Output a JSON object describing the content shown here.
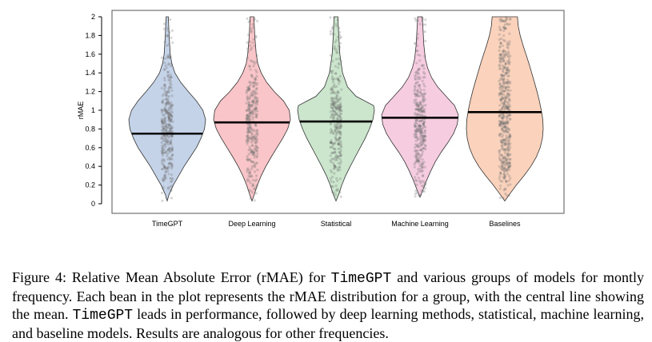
{
  "chart_data": {
    "type": "violin",
    "ylabel": "rMAE",
    "ylim": [
      0,
      2
    ],
    "yticks": [
      0,
      0.2,
      0.4,
      0.6,
      0.8,
      1,
      1.2,
      1.4,
      1.6,
      1.8,
      2
    ],
    "ytick_labels": [
      "0",
      "0.2",
      "0.4",
      "0.6",
      "0.8",
      "1",
      "1.2",
      "1.4",
      "1.6",
      "1.8",
      "2"
    ],
    "groups": [
      {
        "name": "TimeGPT",
        "mean": 0.75,
        "min": 0.03,
        "max": 2.0,
        "color": "#c5d3e8",
        "profile": [
          [
            0.03,
            0
          ],
          [
            0.1,
            0.05
          ],
          [
            0.2,
            0.16
          ],
          [
            0.3,
            0.3
          ],
          [
            0.4,
            0.44
          ],
          [
            0.5,
            0.6
          ],
          [
            0.6,
            0.76
          ],
          [
            0.7,
            0.88
          ],
          [
            0.8,
            0.97
          ],
          [
            0.9,
            1.0
          ],
          [
            1.0,
            0.93
          ],
          [
            1.1,
            0.76
          ],
          [
            1.2,
            0.55
          ],
          [
            1.3,
            0.35
          ],
          [
            1.4,
            0.2
          ],
          [
            1.5,
            0.12
          ],
          [
            1.6,
            0.08
          ],
          [
            1.8,
            0.05
          ],
          [
            2.0,
            0.03
          ]
        ]
      },
      {
        "name": "Deep Learning",
        "mean": 0.87,
        "min": 0.03,
        "max": 2.0,
        "color": "#f9c5c8",
        "profile": [
          [
            0.03,
            0
          ],
          [
            0.1,
            0.06
          ],
          [
            0.2,
            0.14
          ],
          [
            0.3,
            0.24
          ],
          [
            0.4,
            0.36
          ],
          [
            0.5,
            0.5
          ],
          [
            0.6,
            0.65
          ],
          [
            0.7,
            0.8
          ],
          [
            0.8,
            0.93
          ],
          [
            0.9,
            1.0
          ],
          [
            1.0,
            0.97
          ],
          [
            1.1,
            0.82
          ],
          [
            1.2,
            0.58
          ],
          [
            1.3,
            0.38
          ],
          [
            1.4,
            0.24
          ],
          [
            1.5,
            0.15
          ],
          [
            1.6,
            0.11
          ],
          [
            1.8,
            0.07
          ],
          [
            2.0,
            0.05
          ]
        ]
      },
      {
        "name": "Statistical",
        "mean": 0.88,
        "min": 0.03,
        "max": 2.0,
        "color": "#cbe6cc",
        "profile": [
          [
            0.03,
            0
          ],
          [
            0.1,
            0.07
          ],
          [
            0.2,
            0.15
          ],
          [
            0.3,
            0.25
          ],
          [
            0.4,
            0.37
          ],
          [
            0.5,
            0.5
          ],
          [
            0.6,
            0.63
          ],
          [
            0.7,
            0.76
          ],
          [
            0.8,
            0.87
          ],
          [
            0.9,
            0.96
          ],
          [
            1.0,
            1.0
          ],
          [
            1.05,
            0.98
          ],
          [
            1.15,
            0.52
          ],
          [
            1.25,
            0.3
          ],
          [
            1.4,
            0.17
          ],
          [
            1.6,
            0.1
          ],
          [
            1.8,
            0.07
          ],
          [
            2.0,
            0.05
          ]
        ]
      },
      {
        "name": "Machine Learning",
        "mean": 0.92,
        "min": 0.07,
        "max": 2.0,
        "color": "#f6cce0",
        "profile": [
          [
            0.07,
            0
          ],
          [
            0.15,
            0.08
          ],
          [
            0.25,
            0.17
          ],
          [
            0.35,
            0.28
          ],
          [
            0.45,
            0.4
          ],
          [
            0.55,
            0.55
          ],
          [
            0.65,
            0.72
          ],
          [
            0.75,
            0.87
          ],
          [
            0.85,
            0.97
          ],
          [
            0.95,
            1.0
          ],
          [
            1.05,
            0.9
          ],
          [
            1.15,
            0.68
          ],
          [
            1.25,
            0.46
          ],
          [
            1.35,
            0.3
          ],
          [
            1.45,
            0.2
          ],
          [
            1.55,
            0.14
          ],
          [
            1.7,
            0.1
          ],
          [
            2.0,
            0.06
          ]
        ]
      },
      {
        "name": "Baselines",
        "mean": 0.98,
        "min": 0.03,
        "max": 2.0,
        "color": "#fbd3bd",
        "profile": [
          [
            0.03,
            0
          ],
          [
            0.1,
            0.12
          ],
          [
            0.2,
            0.3
          ],
          [
            0.3,
            0.5
          ],
          [
            0.4,
            0.68
          ],
          [
            0.5,
            0.82
          ],
          [
            0.6,
            0.92
          ],
          [
            0.7,
            0.98
          ],
          [
            0.8,
            1.0
          ],
          [
            0.9,
            0.99
          ],
          [
            1.0,
            0.95
          ],
          [
            1.1,
            0.9
          ],
          [
            1.2,
            0.84
          ],
          [
            1.3,
            0.77
          ],
          [
            1.4,
            0.7
          ],
          [
            1.5,
            0.63
          ],
          [
            1.6,
            0.55
          ],
          [
            1.7,
            0.47
          ],
          [
            1.8,
            0.4
          ],
          [
            1.9,
            0.35
          ],
          [
            2.0,
            0.33
          ]
        ]
      }
    ]
  },
  "caption": {
    "prefix": "Figure 4: Relative Mean Absolute Error (rMAE) for ",
    "model_a": "TimeGPT",
    "middle": " and various groups of models for montly frequency.  Each bean in the plot represents the rMAE distribution for a group, with the central line showing the mean. ",
    "model_b": "TimeGPT",
    "suffix": " leads in performance, followed by deep learning methods, statistical, machine learning, and baseline models. Results are analogous for other frequencies."
  }
}
